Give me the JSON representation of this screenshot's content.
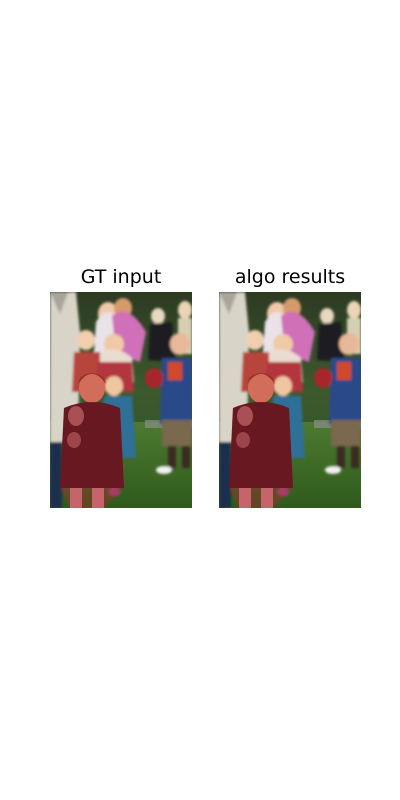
{
  "panels": [
    {
      "title": "GT input"
    },
    {
      "title": "algo results"
    }
  ]
}
